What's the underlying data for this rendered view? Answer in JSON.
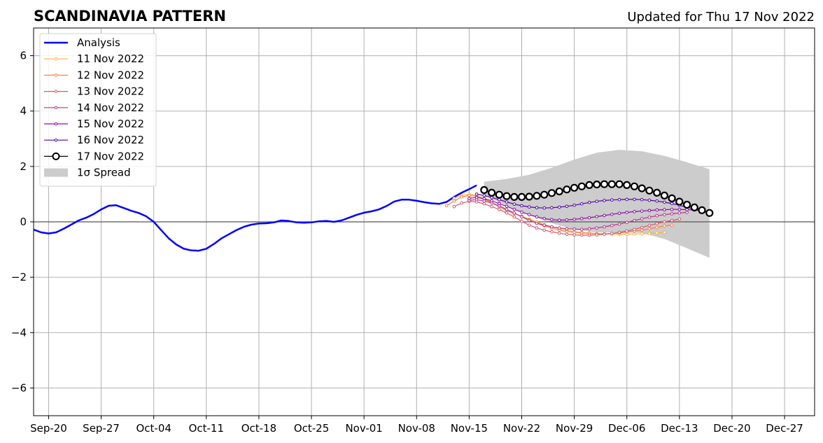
{
  "chart_data": {
    "type": "line",
    "title": "SCANDINAVIA PATTERN",
    "subtitle": "Updated for Thu 17 Nov 2022",
    "xlabel": "",
    "ylabel": "",
    "x_tick_labels": [
      "Sep-20",
      "Sep-27",
      "Oct-04",
      "Oct-11",
      "Oct-18",
      "Oct-25",
      "Nov-01",
      "Nov-08",
      "Nov-15",
      "Nov-22",
      "Nov-29",
      "Dec-06",
      "Dec-13",
      "Dec-20",
      "Dec-27"
    ],
    "y_ticks": [
      -6,
      -4,
      -2,
      0,
      2,
      4,
      6
    ],
    "y_tick_labels": [
      "−6",
      "−4",
      "−2",
      "0",
      "2",
      "4",
      "6"
    ],
    "xlim": [
      "2022-09-18",
      "2022-12-31"
    ],
    "ylim": [
      -7,
      7
    ],
    "grid": true,
    "legend_position": "top-left",
    "legend": [
      {
        "label": "Analysis",
        "color": "#0000ff",
        "style": "line"
      },
      {
        "label": "11 Nov 2022",
        "color": "#fcb339",
        "style": "line-marker"
      },
      {
        "label": "12 Nov 2022",
        "color": "#f1834b",
        "style": "line-marker"
      },
      {
        "label": "13 Nov 2022",
        "color": "#d8576b",
        "style": "line-marker"
      },
      {
        "label": "14 Nov 2022",
        "color": "#b4348e",
        "style": "line-marker"
      },
      {
        "label": "15 Nov 2022",
        "color": "#8b0aa5",
        "style": "line-marker"
      },
      {
        "label": "16 Nov 2022",
        "color": "#5102a3",
        "style": "line-marker"
      },
      {
        "label": "17 Nov 2022",
        "color": "#000000",
        "style": "big-marker"
      },
      {
        "label": "1σ Spread",
        "color": "#cccccc",
        "style": "patch"
      }
    ],
    "analysis": {
      "x": [
        "2022-09-18",
        "2022-09-19",
        "2022-09-20",
        "2022-09-21",
        "2022-09-22",
        "2022-09-23",
        "2022-09-24",
        "2022-09-25",
        "2022-09-26",
        "2022-09-27",
        "2022-09-28",
        "2022-09-29",
        "2022-09-30",
        "2022-10-01",
        "2022-10-02",
        "2022-10-03",
        "2022-10-04",
        "2022-10-05",
        "2022-10-06",
        "2022-10-07",
        "2022-10-08",
        "2022-10-09",
        "2022-10-10",
        "2022-10-11",
        "2022-10-12",
        "2022-10-13",
        "2022-10-14",
        "2022-10-15",
        "2022-10-16",
        "2022-10-17",
        "2022-10-18",
        "2022-10-19",
        "2022-10-20",
        "2022-10-21",
        "2022-10-22",
        "2022-10-23",
        "2022-10-24",
        "2022-10-25",
        "2022-10-26",
        "2022-10-27",
        "2022-10-28",
        "2022-10-29",
        "2022-10-30",
        "2022-10-31",
        "2022-11-01",
        "2022-11-02",
        "2022-11-03",
        "2022-11-04",
        "2022-11-05",
        "2022-11-06",
        "2022-11-07",
        "2022-11-08",
        "2022-11-09",
        "2022-11-10",
        "2022-11-11",
        "2022-11-12",
        "2022-11-13",
        "2022-11-14",
        "2022-11-15",
        "2022-11-16"
      ],
      "y": [
        -0.28,
        -0.38,
        -0.42,
        -0.38,
        -0.25,
        -0.1,
        0.05,
        0.15,
        0.28,
        0.45,
        0.58,
        0.6,
        0.5,
        0.4,
        0.32,
        0.2,
        0.0,
        -0.3,
        -0.6,
        -0.82,
        -0.97,
        -1.03,
        -1.04,
        -0.97,
        -0.8,
        -0.6,
        -0.45,
        -0.3,
        -0.18,
        -0.1,
        -0.06,
        -0.05,
        -0.02,
        0.05,
        0.03,
        -0.02,
        -0.03,
        -0.02,
        0.02,
        0.03,
        0.0,
        0.05,
        0.15,
        0.25,
        0.33,
        0.38,
        0.45,
        0.57,
        0.73,
        0.8,
        0.8,
        0.76,
        0.71,
        0.67,
        0.65,
        0.72,
        0.9,
        1.05,
        1.18,
        1.32
      ]
    },
    "spread": {
      "x": [
        "2022-11-17",
        "2022-11-20",
        "2022-11-23",
        "2022-11-26",
        "2022-11-29",
        "2022-12-02",
        "2022-12-05",
        "2022-12-08",
        "2022-12-11",
        "2022-12-14",
        "2022-12-17"
      ],
      "upper": [
        1.45,
        1.55,
        1.7,
        1.95,
        2.25,
        2.5,
        2.6,
        2.55,
        2.38,
        2.15,
        1.9
      ],
      "lower": [
        0.95,
        0.58,
        0.25,
        -0.05,
        -0.28,
        -0.38,
        -0.38,
        -0.4,
        -0.62,
        -0.95,
        -1.3
      ]
    },
    "series": [
      {
        "name": "11 Nov 2022",
        "color": "#fcb339",
        "x": [
          "2022-11-13",
          "2022-11-14",
          "2022-11-15",
          "2022-11-16",
          "2022-11-17",
          "2022-11-18",
          "2022-11-19",
          "2022-11-20",
          "2022-11-21",
          "2022-11-22",
          "2022-11-23",
          "2022-11-24",
          "2022-11-25",
          "2022-11-26",
          "2022-11-27",
          "2022-11-28",
          "2022-11-29",
          "2022-11-30",
          "2022-12-01",
          "2022-12-02",
          "2022-12-03",
          "2022-12-04",
          "2022-12-05",
          "2022-12-06",
          "2022-12-07",
          "2022-12-08",
          "2022-12-09",
          "2022-12-10",
          "2022-12-11"
        ],
        "y": [
          0.85,
          0.95,
          1.0,
          0.95,
          0.85,
          0.7,
          0.55,
          0.4,
          0.3,
          0.2,
          0.1,
          0.0,
          -0.1,
          -0.18,
          -0.25,
          -0.3,
          -0.35,
          -0.38,
          -0.4,
          -0.42,
          -0.43,
          -0.44,
          -0.45,
          -0.45,
          -0.44,
          -0.43,
          -0.42,
          -0.4,
          -0.38
        ]
      },
      {
        "name": "12 Nov 2022",
        "color": "#f1834b",
        "x": [
          "2022-11-12",
          "2022-11-13",
          "2022-11-14",
          "2022-11-15",
          "2022-11-16",
          "2022-11-17",
          "2022-11-18",
          "2022-11-19",
          "2022-11-20",
          "2022-11-21",
          "2022-11-22",
          "2022-11-23",
          "2022-11-24",
          "2022-11-25",
          "2022-11-26",
          "2022-11-27",
          "2022-11-28",
          "2022-11-29",
          "2022-11-30",
          "2022-12-01",
          "2022-12-02",
          "2022-12-03",
          "2022-12-04",
          "2022-12-05",
          "2022-12-06",
          "2022-12-07",
          "2022-12-08",
          "2022-12-09",
          "2022-12-10",
          "2022-12-11",
          "2022-12-12"
        ],
        "y": [
          0.58,
          0.75,
          0.9,
          0.95,
          0.92,
          0.82,
          0.68,
          0.55,
          0.42,
          0.3,
          0.2,
          0.08,
          -0.05,
          -0.15,
          -0.23,
          -0.3,
          -0.35,
          -0.38,
          -0.4,
          -0.42,
          -0.43,
          -0.43,
          -0.42,
          -0.4,
          -0.37,
          -0.33,
          -0.3,
          -0.25,
          -0.2,
          -0.15,
          -0.12
        ]
      },
      {
        "name": "13 Nov 2022",
        "color": "#d8576b",
        "x": [
          "2022-11-13",
          "2022-11-14",
          "2022-11-15",
          "2022-11-16",
          "2022-11-17",
          "2022-11-18",
          "2022-11-19",
          "2022-11-20",
          "2022-11-21",
          "2022-11-22",
          "2022-11-23",
          "2022-11-24",
          "2022-11-25",
          "2022-11-26",
          "2022-11-27",
          "2022-11-28",
          "2022-11-29",
          "2022-11-30",
          "2022-12-01",
          "2022-12-02",
          "2022-12-03",
          "2022-12-04",
          "2022-12-05",
          "2022-12-06",
          "2022-12-07",
          "2022-12-08",
          "2022-12-09",
          "2022-12-10",
          "2022-12-11",
          "2022-12-12",
          "2022-12-13"
        ],
        "y": [
          0.55,
          0.68,
          0.74,
          0.72,
          0.65,
          0.55,
          0.45,
          0.32,
          0.18,
          0.02,
          -0.12,
          -0.22,
          -0.3,
          -0.36,
          -0.41,
          -0.45,
          -0.47,
          -0.48,
          -0.48,
          -0.47,
          -0.45,
          -0.42,
          -0.38,
          -0.33,
          -0.27,
          -0.2,
          -0.13,
          -0.06,
          0.0,
          0.05,
          0.1
        ]
      },
      {
        "name": "14 Nov 2022",
        "color": "#b4348e",
        "x": [
          "2022-11-15",
          "2022-11-16",
          "2022-11-17",
          "2022-11-18",
          "2022-11-19",
          "2022-11-20",
          "2022-11-21",
          "2022-11-22",
          "2022-11-23",
          "2022-11-24",
          "2022-11-25",
          "2022-11-26",
          "2022-11-27",
          "2022-11-28",
          "2022-11-29",
          "2022-11-30",
          "2022-12-01",
          "2022-12-02",
          "2022-12-03",
          "2022-12-04",
          "2022-12-05",
          "2022-12-06",
          "2022-12-07",
          "2022-12-08",
          "2022-12-09",
          "2022-12-10",
          "2022-12-11",
          "2022-12-12",
          "2022-12-13",
          "2022-12-14"
        ],
        "y": [
          0.78,
          0.8,
          0.75,
          0.68,
          0.58,
          0.45,
          0.32,
          0.18,
          0.05,
          -0.05,
          -0.12,
          -0.18,
          -0.22,
          -0.25,
          -0.26,
          -0.27,
          -0.25,
          -0.22,
          -0.18,
          -0.13,
          -0.08,
          -0.02,
          0.05,
          0.11,
          0.17,
          0.22,
          0.26,
          0.29,
          0.32,
          0.34
        ]
      },
      {
        "name": "15 Nov 2022",
        "color": "#8b0aa5",
        "x": [
          "2022-11-15",
          "2022-11-16",
          "2022-11-17",
          "2022-11-18",
          "2022-11-19",
          "2022-11-20",
          "2022-11-21",
          "2022-11-22",
          "2022-11-23",
          "2022-11-24",
          "2022-11-25",
          "2022-11-26",
          "2022-11-27",
          "2022-11-28",
          "2022-11-29",
          "2022-11-30",
          "2022-12-01",
          "2022-12-02",
          "2022-12-03",
          "2022-12-04",
          "2022-12-05",
          "2022-12-06",
          "2022-12-07",
          "2022-12-08",
          "2022-12-09",
          "2022-12-10",
          "2022-12-11",
          "2022-12-12",
          "2022-12-13",
          "2022-12-14",
          "2022-12-15"
        ],
        "y": [
          0.85,
          0.88,
          0.84,
          0.76,
          0.66,
          0.56,
          0.45,
          0.35,
          0.26,
          0.18,
          0.12,
          0.08,
          0.06,
          0.07,
          0.09,
          0.12,
          0.15,
          0.19,
          0.23,
          0.27,
          0.31,
          0.34,
          0.37,
          0.39,
          0.41,
          0.43,
          0.44,
          0.45,
          0.45,
          0.44,
          0.43
        ]
      },
      {
        "name": "16 Nov 2022",
        "color": "#5102a3",
        "x": [
          "2022-11-16",
          "2022-11-17",
          "2022-11-18",
          "2022-11-19",
          "2022-11-20",
          "2022-11-21",
          "2022-11-22",
          "2022-11-23",
          "2022-11-24",
          "2022-11-25",
          "2022-11-26",
          "2022-11-27",
          "2022-11-28",
          "2022-11-29",
          "2022-11-30",
          "2022-12-01",
          "2022-12-02",
          "2022-12-03",
          "2022-12-04",
          "2022-12-05",
          "2022-12-06",
          "2022-12-07",
          "2022-12-08",
          "2022-12-09",
          "2022-12-10",
          "2022-12-11",
          "2022-12-12",
          "2022-12-13",
          "2022-12-14",
          "2022-12-15",
          "2022-12-16"
        ],
        "y": [
          1.0,
          0.95,
          0.88,
          0.8,
          0.72,
          0.64,
          0.58,
          0.54,
          0.51,
          0.5,
          0.51,
          0.53,
          0.56,
          0.6,
          0.65,
          0.7,
          0.74,
          0.77,
          0.79,
          0.8,
          0.81,
          0.81,
          0.8,
          0.78,
          0.75,
          0.71,
          0.66,
          0.6,
          0.53,
          0.45,
          0.38
        ]
      },
      {
        "name": "17 Nov 2022",
        "color": "#000000",
        "big": true,
        "x": [
          "2022-11-17",
          "2022-11-18",
          "2022-11-19",
          "2022-11-20",
          "2022-11-21",
          "2022-11-22",
          "2022-11-23",
          "2022-11-24",
          "2022-11-25",
          "2022-11-26",
          "2022-11-27",
          "2022-11-28",
          "2022-11-29",
          "2022-11-30",
          "2022-12-01",
          "2022-12-02",
          "2022-12-03",
          "2022-12-04",
          "2022-12-05",
          "2022-12-06",
          "2022-12-07",
          "2022-12-08",
          "2022-12-09",
          "2022-12-10",
          "2022-12-11",
          "2022-12-12",
          "2022-12-13",
          "2022-12-14",
          "2022-12-15",
          "2022-12-16",
          "2022-12-17"
        ],
        "y": [
          1.15,
          1.05,
          0.98,
          0.93,
          0.9,
          0.9,
          0.91,
          0.94,
          0.98,
          1.04,
          1.1,
          1.17,
          1.23,
          1.28,
          1.33,
          1.35,
          1.36,
          1.36,
          1.36,
          1.33,
          1.28,
          1.21,
          1.13,
          1.05,
          0.95,
          0.85,
          0.73,
          0.62,
          0.52,
          0.42,
          0.32
        ]
      }
    ]
  }
}
